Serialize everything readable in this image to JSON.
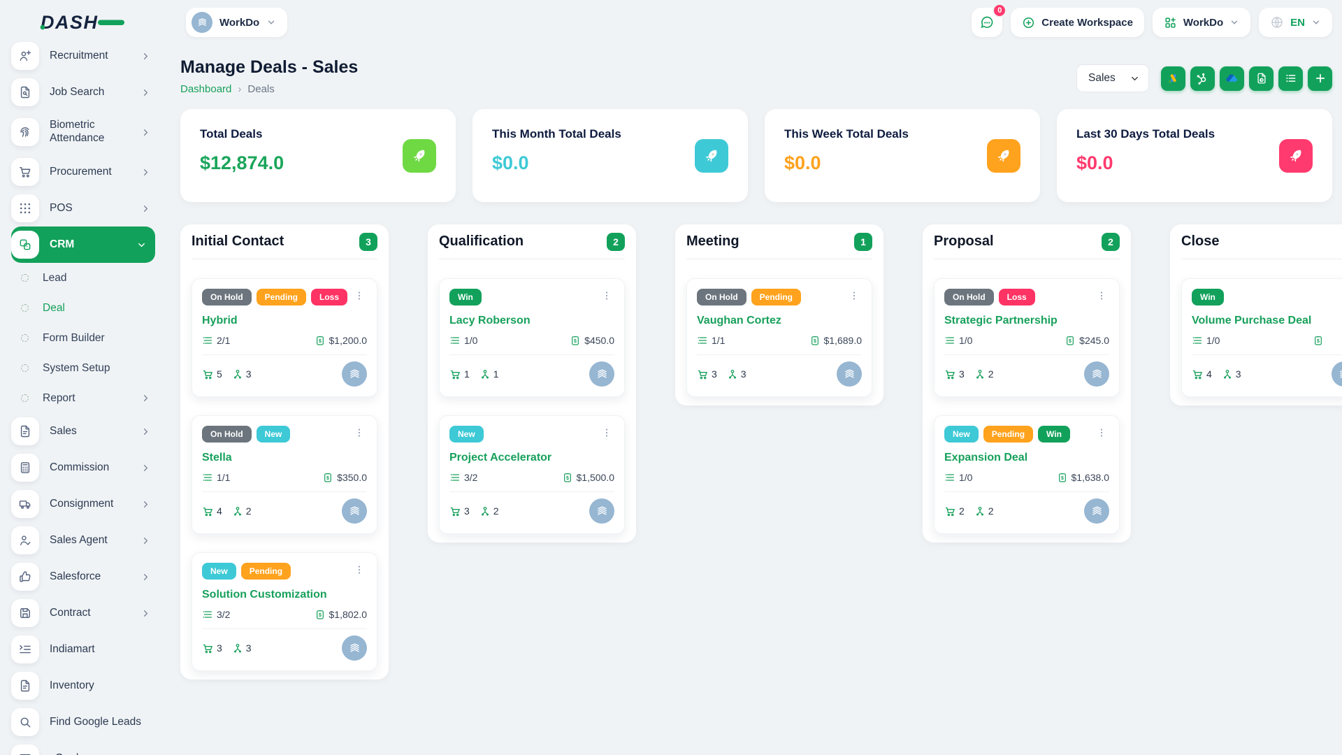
{
  "colors": {
    "primary_green": "#12a15b",
    "light_green_tile": "#6fd943",
    "cyan": "#3ec9d6",
    "orange": "#ffa21d",
    "pink": "#ff3a6e",
    "gray_badge": "#6c757d",
    "win_green": "#12a15b",
    "avatar_blue": "#96b6d2"
  },
  "header": {
    "logo_text": "DASH",
    "workspace_pill": "WorkDo",
    "messages_badge": "0",
    "create_workspace_label": "Create Workspace",
    "workspace_switcher_label": "WorkDo",
    "language_label": "EN"
  },
  "sidebar": {
    "items": [
      {
        "label": "Recruitment",
        "icon": "person-plus-icon",
        "type": "main",
        "chevron": "right"
      },
      {
        "label": "Job Search",
        "icon": "document-search-icon",
        "type": "main",
        "chevron": "right"
      },
      {
        "label": "Biometric Attendance",
        "icon": "fingerprint-icon",
        "type": "main",
        "chevron": "right",
        "tall": true
      },
      {
        "label": "Procurement",
        "icon": "cart-icon",
        "type": "main",
        "chevron": "right"
      },
      {
        "label": "POS",
        "icon": "grid-dots-icon",
        "type": "main",
        "chevron": "right"
      },
      {
        "label": "CRM",
        "icon": "crm-squares-icon",
        "type": "main",
        "chevron": "down",
        "active": true
      },
      {
        "label": "Lead",
        "type": "sub"
      },
      {
        "label": "Deal",
        "type": "sub",
        "active": true
      },
      {
        "label": "Form Builder",
        "type": "sub"
      },
      {
        "label": "System Setup",
        "type": "sub"
      },
      {
        "label": "Report",
        "type": "sub",
        "chevron": "right"
      },
      {
        "label": "Sales",
        "icon": "document-icon",
        "type": "main",
        "chevron": "right"
      },
      {
        "label": "Commission",
        "icon": "calculator-icon",
        "type": "main",
        "chevron": "right"
      },
      {
        "label": "Consignment",
        "icon": "truck-icon",
        "type": "main",
        "chevron": "right"
      },
      {
        "label": "Sales Agent",
        "icon": "person-check-icon",
        "type": "main",
        "chevron": "right"
      },
      {
        "label": "Salesforce",
        "icon": "thumbs-up-icon",
        "type": "main",
        "chevron": "right"
      },
      {
        "label": "Contract",
        "icon": "floppy-icon",
        "type": "main",
        "chevron": "right"
      },
      {
        "label": "Indiamart",
        "icon": "indent-list-icon",
        "type": "main"
      },
      {
        "label": "Inventory",
        "icon": "document-icon",
        "type": "main"
      },
      {
        "label": "Find Google Leads",
        "icon": "magnifier-icon",
        "type": "main"
      },
      {
        "label": "vCard",
        "icon": "id-card-icon",
        "type": "main",
        "chevron": "right"
      }
    ]
  },
  "page": {
    "title": "Manage Deals - Sales",
    "breadcrumb": {
      "home": "Dashboard",
      "separator": "›",
      "current": "Deals"
    }
  },
  "toolbar": {
    "pipeline_select_value": "Sales",
    "buttons": [
      "google-ads-icon",
      "hubspot-icon",
      "onedrive-icon",
      "export-document-icon",
      "list-icon",
      "plus-icon"
    ]
  },
  "stats": [
    {
      "label": "Total Deals",
      "value": "$12,874.0",
      "value_color": "#1aa55a",
      "tile_color": "#6fd943"
    },
    {
      "label": "This Month Total Deals",
      "value": "$0.0",
      "value_color": "#3ec9d6",
      "tile_color": "#3ec9d6"
    },
    {
      "label": "This Week Total Deals",
      "value": "$0.0",
      "value_color": "#ffa21d",
      "tile_color": "#ffa21d"
    },
    {
      "label": "Last 30 Days Total Deals",
      "value": "$0.0",
      "value_color": "#ff3a6e",
      "tile_color": "#ff3a6e"
    }
  ],
  "board": {
    "columns": [
      {
        "name": "Initial Contact",
        "count": "3",
        "cards": [
          {
            "badges": [
              {
                "label": "On Hold",
                "color": "#6c757d"
              },
              {
                "label": "Pending",
                "color": "#ffa21d"
              },
              {
                "label": "Loss",
                "color": "#ff3364"
              }
            ],
            "title": "Hybrid",
            "tasks": "2/1",
            "amount": "$1,200.0",
            "products": "5",
            "users": "3"
          },
          {
            "badges": [
              {
                "label": "On Hold",
                "color": "#6c757d"
              },
              {
                "label": "New",
                "color": "#3ec9d6"
              }
            ],
            "title": "Stella",
            "tasks": "1/1",
            "amount": "$350.0",
            "products": "4",
            "users": "2"
          },
          {
            "badges": [
              {
                "label": "New",
                "color": "#3ec9d6"
              },
              {
                "label": "Pending",
                "color": "#ffa21d"
              }
            ],
            "title": "Solution Customization",
            "tasks": "3/2",
            "amount": "$1,802.0",
            "products": "3",
            "users": "3"
          }
        ]
      },
      {
        "name": "Qualification",
        "count": "2",
        "cards": [
          {
            "badges": [
              {
                "label": "Win",
                "color": "#12a15b"
              }
            ],
            "title": "Lacy Roberson",
            "tasks": "1/0",
            "amount": "$450.0",
            "products": "1",
            "users": "1"
          },
          {
            "badges": [
              {
                "label": "New",
                "color": "#3ec9d6"
              }
            ],
            "title": "Project Accelerator",
            "tasks": "3/2",
            "amount": "$1,500.0",
            "products": "3",
            "users": "2"
          }
        ]
      },
      {
        "name": "Meeting",
        "count": "1",
        "cards": [
          {
            "badges": [
              {
                "label": "On Hold",
                "color": "#6c757d"
              },
              {
                "label": "Pending",
                "color": "#ffa21d"
              }
            ],
            "title": "Vaughan Cortez",
            "tasks": "1/1",
            "amount": "$1,689.0",
            "products": "3",
            "users": "3"
          }
        ]
      },
      {
        "name": "Proposal",
        "count": "2",
        "cards": [
          {
            "badges": [
              {
                "label": "On Hold",
                "color": "#6c757d"
              },
              {
                "label": "Loss",
                "color": "#ff3364"
              }
            ],
            "title": "Strategic Partnership",
            "tasks": "1/0",
            "amount": "$245.0",
            "products": "3",
            "users": "2"
          },
          {
            "badges": [
              {
                "label": "New",
                "color": "#3ec9d6"
              },
              {
                "label": "Pending",
                "color": "#ffa21d"
              },
              {
                "label": "Win",
                "color": "#12a15b"
              }
            ],
            "title": "Expansion Deal",
            "tasks": "1/0",
            "amount": "$1,638.0",
            "products": "2",
            "users": "2"
          }
        ]
      },
      {
        "name": "Close",
        "count": "",
        "cards": [
          {
            "badges": [
              {
                "label": "Win",
                "color": "#12a15b"
              }
            ],
            "title": "Volume Purchase Deal",
            "tasks": "1/0",
            "amount": "",
            "products": "4",
            "users": "3"
          }
        ]
      }
    ]
  }
}
